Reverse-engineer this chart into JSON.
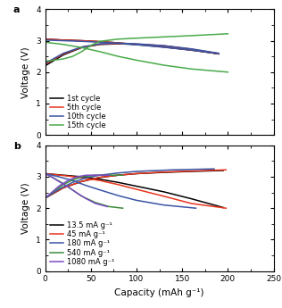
{
  "panel_a": {
    "title": "a",
    "ylabel": "Voltage (V)",
    "ylim": [
      0,
      4
    ],
    "yticks": [
      0,
      1,
      2,
      3,
      4
    ],
    "xlim": [
      0,
      250
    ],
    "xticks": [
      0,
      50,
      100,
      150,
      200,
      250
    ],
    "curves": [
      {
        "label": "1st cycle",
        "color": "#000000",
        "charge": [
          [
            0,
            2.2
          ],
          [
            20,
            2.55
          ],
          [
            40,
            2.78
          ],
          [
            60,
            2.88
          ],
          [
            80,
            2.9
          ],
          [
            100,
            2.88
          ],
          [
            130,
            2.83
          ],
          [
            160,
            2.72
          ],
          [
            190,
            2.58
          ]
        ],
        "discharge": [
          [
            0,
            3.05
          ],
          [
            20,
            3.02
          ],
          [
            40,
            3.0
          ],
          [
            60,
            2.97
          ],
          [
            80,
            2.93
          ],
          [
            100,
            2.88
          ],
          [
            130,
            2.8
          ],
          [
            160,
            2.7
          ],
          [
            190,
            2.58
          ]
        ]
      },
      {
        "label": "5th cycle",
        "color": "#e8341c",
        "charge": [
          [
            0,
            2.25
          ],
          [
            20,
            2.58
          ],
          [
            40,
            2.79
          ],
          [
            60,
            2.89
          ],
          [
            80,
            2.91
          ],
          [
            100,
            2.89
          ],
          [
            130,
            2.84
          ],
          [
            160,
            2.73
          ],
          [
            190,
            2.59
          ]
        ],
        "discharge": [
          [
            0,
            3.05
          ],
          [
            20,
            3.02
          ],
          [
            40,
            3.0
          ],
          [
            60,
            2.97
          ],
          [
            80,
            2.93
          ],
          [
            100,
            2.88
          ],
          [
            130,
            2.8
          ],
          [
            160,
            2.7
          ],
          [
            190,
            2.59
          ]
        ]
      },
      {
        "label": "10th cycle",
        "color": "#3a55a4",
        "charge": [
          [
            0,
            2.28
          ],
          [
            20,
            2.6
          ],
          [
            40,
            2.8
          ],
          [
            60,
            2.9
          ],
          [
            80,
            2.92
          ],
          [
            100,
            2.9
          ],
          [
            130,
            2.84
          ],
          [
            160,
            2.74
          ],
          [
            190,
            2.6
          ]
        ],
        "discharge": [
          [
            0,
            3.02
          ],
          [
            20,
            3.0
          ],
          [
            40,
            2.98
          ],
          [
            60,
            2.95
          ],
          [
            80,
            2.92
          ],
          [
            100,
            2.87
          ],
          [
            130,
            2.79
          ],
          [
            160,
            2.7
          ],
          [
            190,
            2.59
          ]
        ]
      },
      {
        "label": "15th cycle",
        "color": "#4aaa4a",
        "charge": [
          [
            0,
            2.35
          ],
          [
            10,
            2.38
          ],
          [
            20,
            2.42
          ],
          [
            30,
            2.5
          ],
          [
            40,
            2.65
          ],
          [
            50,
            2.85
          ],
          [
            60,
            2.98
          ],
          [
            80,
            3.05
          ],
          [
            100,
            3.08
          ],
          [
            130,
            3.12
          ],
          [
            160,
            3.16
          ],
          [
            200,
            3.22
          ]
        ],
        "discharge": [
          [
            0,
            2.95
          ],
          [
            20,
            2.88
          ],
          [
            40,
            2.78
          ],
          [
            60,
            2.65
          ],
          [
            80,
            2.5
          ],
          [
            100,
            2.38
          ],
          [
            130,
            2.22
          ],
          [
            160,
            2.1
          ],
          [
            200,
            2.0
          ]
        ]
      }
    ]
  },
  "panel_b": {
    "title": "b",
    "ylabel": "Voltage (V)",
    "xlabel": "Capacity (mAh g⁻¹)",
    "ylim": [
      0,
      4
    ],
    "yticks": [
      0,
      1,
      2,
      3,
      4
    ],
    "xlim": [
      0,
      250
    ],
    "xticks": [
      0,
      50,
      100,
      150,
      200,
      250
    ],
    "curves": [
      {
        "label": "13.5 mA g⁻¹",
        "color": "#000000",
        "charge": [
          [
            0,
            2.32
          ],
          [
            20,
            2.65
          ],
          [
            40,
            2.85
          ],
          [
            60,
            2.98
          ],
          [
            80,
            3.05
          ],
          [
            100,
            3.1
          ],
          [
            130,
            3.14
          ],
          [
            160,
            3.17
          ],
          [
            195,
            3.2
          ]
        ],
        "discharge": [
          [
            0,
            3.1
          ],
          [
            20,
            3.05
          ],
          [
            40,
            3.0
          ],
          [
            60,
            2.92
          ],
          [
            80,
            2.82
          ],
          [
            100,
            2.7
          ],
          [
            130,
            2.52
          ],
          [
            160,
            2.3
          ],
          [
            195,
            2.02
          ]
        ]
      },
      {
        "label": "45 mA g⁻¹",
        "color": "#e8341c",
        "charge": [
          [
            0,
            2.32
          ],
          [
            20,
            2.65
          ],
          [
            40,
            2.85
          ],
          [
            60,
            2.98
          ],
          [
            80,
            3.05
          ],
          [
            100,
            3.1
          ],
          [
            130,
            3.15
          ],
          [
            160,
            3.18
          ],
          [
            198,
            3.22
          ]
        ],
        "discharge": [
          [
            0,
            3.1
          ],
          [
            20,
            3.04
          ],
          [
            40,
            2.97
          ],
          [
            60,
            2.88
          ],
          [
            80,
            2.75
          ],
          [
            100,
            2.6
          ],
          [
            130,
            2.38
          ],
          [
            160,
            2.15
          ],
          [
            198,
            2.0
          ]
        ]
      },
      {
        "label": "180 mA g⁻¹",
        "color": "#3a55a4",
        "charge": [
          [
            0,
            2.32
          ],
          [
            15,
            2.6
          ],
          [
            30,
            2.82
          ],
          [
            45,
            2.97
          ],
          [
            60,
            3.05
          ],
          [
            80,
            3.12
          ],
          [
            100,
            3.17
          ],
          [
            140,
            3.22
          ],
          [
            185,
            3.25
          ]
        ],
        "discharge": [
          [
            0,
            3.1
          ],
          [
            15,
            3.0
          ],
          [
            30,
            2.88
          ],
          [
            45,
            2.72
          ],
          [
            60,
            2.58
          ],
          [
            80,
            2.4
          ],
          [
            100,
            2.25
          ],
          [
            130,
            2.1
          ],
          [
            165,
            2.0
          ]
        ]
      },
      {
        "label": "540 mA g⁻¹",
        "color": "#3a8a3a",
        "charge": [
          [
            0,
            2.32
          ],
          [
            10,
            2.55
          ],
          [
            20,
            2.75
          ],
          [
            30,
            2.9
          ],
          [
            40,
            3.0
          ],
          [
            55,
            3.05
          ],
          [
            70,
            3.05
          ],
          [
            85,
            3.05
          ]
        ],
        "discharge": [
          [
            0,
            3.1
          ],
          [
            10,
            2.95
          ],
          [
            20,
            2.78
          ],
          [
            30,
            2.58
          ],
          [
            40,
            2.38
          ],
          [
            55,
            2.18
          ],
          [
            70,
            2.05
          ],
          [
            85,
            2.0
          ]
        ]
      },
      {
        "label": "1080 mA g⁻¹",
        "color": "#7c4bc4",
        "charge": [
          [
            0,
            2.32
          ],
          [
            8,
            2.52
          ],
          [
            15,
            2.7
          ],
          [
            25,
            2.88
          ],
          [
            35,
            3.0
          ],
          [
            45,
            3.05
          ],
          [
            58,
            3.05
          ],
          [
            70,
            3.05
          ]
        ],
        "discharge": [
          [
            0,
            3.1
          ],
          [
            8,
            2.98
          ],
          [
            15,
            2.85
          ],
          [
            25,
            2.68
          ],
          [
            35,
            2.48
          ],
          [
            45,
            2.3
          ],
          [
            55,
            2.15
          ],
          [
            68,
            2.05
          ]
        ]
      }
    ]
  },
  "legend_fontsize": 6.0,
  "axis_fontsize": 8,
  "tick_fontsize": 6.5,
  "label_fontsize": 7.5,
  "linewidth": 1.1
}
